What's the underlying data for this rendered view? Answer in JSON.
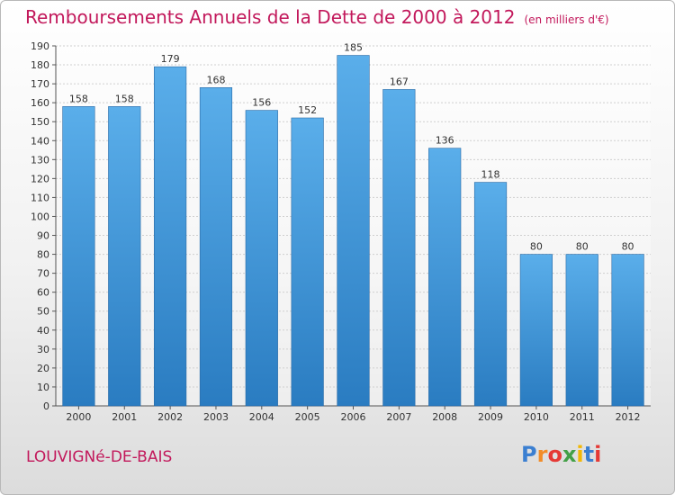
{
  "header": {
    "title": "Remboursements Annuels de la Dette de 2000 à 2012",
    "subtitle": "(en milliers d'€)"
  },
  "footer": {
    "commune": "LOUVIGNé-DE-BAIS",
    "logo": {
      "letters": [
        "P",
        "r",
        "o",
        "x",
        "i",
        "t",
        "i"
      ],
      "colors": [
        "#3b7fd1",
        "#f28c28",
        "#e53935",
        "#43a047",
        "#f2b705",
        "#3b7fd1",
        "#e53935"
      ]
    }
  },
  "chart_data": {
    "type": "bar",
    "categories": [
      "2000",
      "2001",
      "2002",
      "2003",
      "2004",
      "2005",
      "2006",
      "2007",
      "2008",
      "2009",
      "2010",
      "2011",
      "2012"
    ],
    "values": [
      158,
      158,
      179,
      168,
      156,
      152,
      185,
      167,
      136,
      118,
      80,
      80,
      80
    ],
    "data_labels": [
      "158",
      "158",
      "179",
      "168",
      "156",
      "152",
      "185",
      "167",
      "136",
      "118",
      "80",
      "80",
      "80"
    ],
    "ylim": [
      0,
      190
    ],
    "yticks": [
      0,
      10,
      20,
      30,
      40,
      50,
      60,
      70,
      80,
      90,
      100,
      110,
      120,
      130,
      140,
      150,
      160,
      170,
      180,
      190
    ],
    "grid": true,
    "bar_color_top": "#5aaeea",
    "bar_color_bottom": "#2a7cc1"
  }
}
